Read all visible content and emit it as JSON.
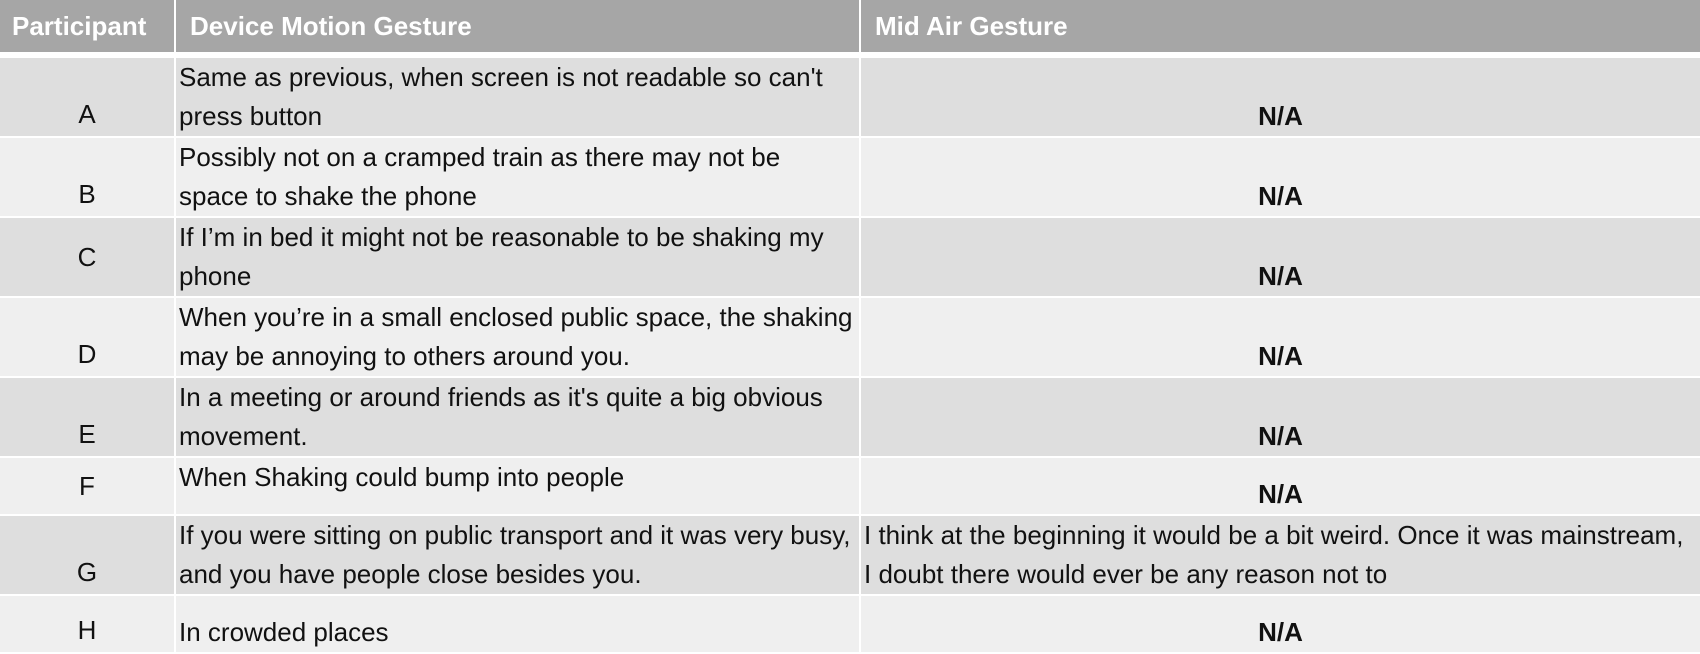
{
  "table": {
    "headers": [
      "Participant",
      "Device Motion Gesture",
      "Mid Air Gesture"
    ],
    "rows": [
      {
        "participant": "A",
        "device_motion": "Same as previous, when screen is not readable so can't press button",
        "mid_air": "N/A"
      },
      {
        "participant": "B",
        "device_motion": "Possibly not on a cramped train as there may not be space to shake the phone",
        "mid_air": "N/A"
      },
      {
        "participant": "C",
        "device_motion": "If I’m in bed it might not be reasonable to be shaking my phone",
        "mid_air": "N/A"
      },
      {
        "participant": "D",
        "device_motion": "When you’re in a small enclosed public space, the shaking may be annoying to others around you.",
        "mid_air": "N/A"
      },
      {
        "participant": "E",
        "device_motion": "In a meeting or around friends as it's quite a big obvious movement.",
        "mid_air": "N/A"
      },
      {
        "participant": "F",
        "device_motion": "When Shaking could bump into people",
        "mid_air": "N/A"
      },
      {
        "participant": "G",
        "device_motion": "If you were sitting on public transport and it was very busy, and you have people close besides you.",
        "mid_air": "I think at the beginning it would be a bit weird. Once it was mainstream, I doubt there would ever be any reason not to"
      },
      {
        "participant": "H",
        "device_motion": "In crowded places",
        "mid_air": "N/A"
      }
    ]
  }
}
